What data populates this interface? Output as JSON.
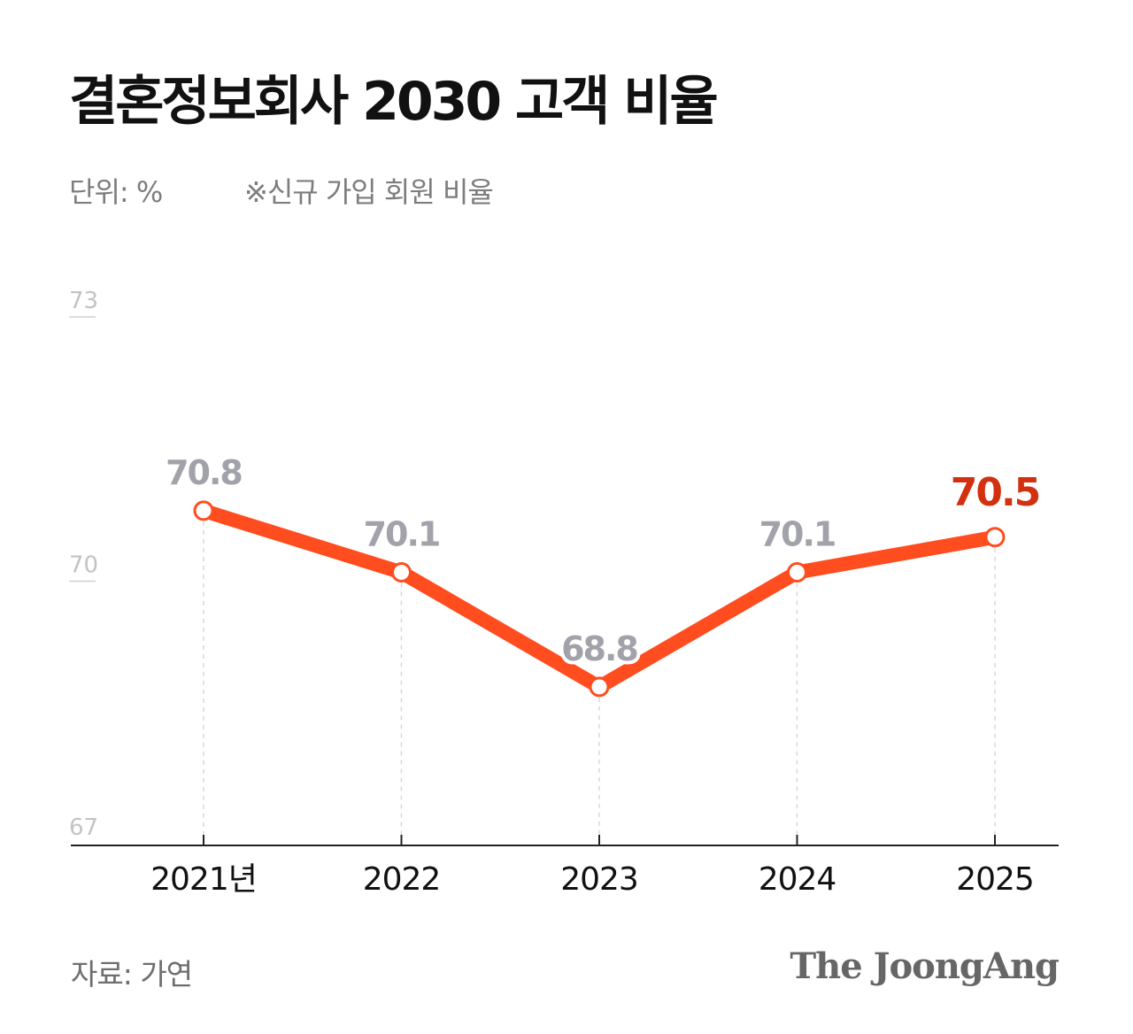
{
  "title": "결혼정보회사 2030 고객 비율",
  "unit": "단위: %",
  "note": "※신규 가입 회원 비율",
  "source": "자료: 가연",
  "brand": "The JoongAng",
  "colors": {
    "line": "#ff4d1f",
    "highlight_label": "#d2300f",
    "label": "#a2a2aa"
  },
  "chart_data": {
    "type": "line",
    "categories": [
      "2021년",
      "2022",
      "2023",
      "2024",
      "2025"
    ],
    "series": [
      {
        "values": [
          70.8,
          70.1,
          68.8,
          70.1,
          70.5
        ]
      }
    ],
    "data_labels": [
      "70.8",
      "70.1",
      "68.8",
      "70.1",
      "70.5"
    ],
    "highlight_index": 4,
    "ylim": [
      67,
      73
    ],
    "yticks": [
      "73",
      "70",
      "67"
    ],
    "ytick_values": [
      73,
      70,
      67
    ],
    "grid": false
  }
}
